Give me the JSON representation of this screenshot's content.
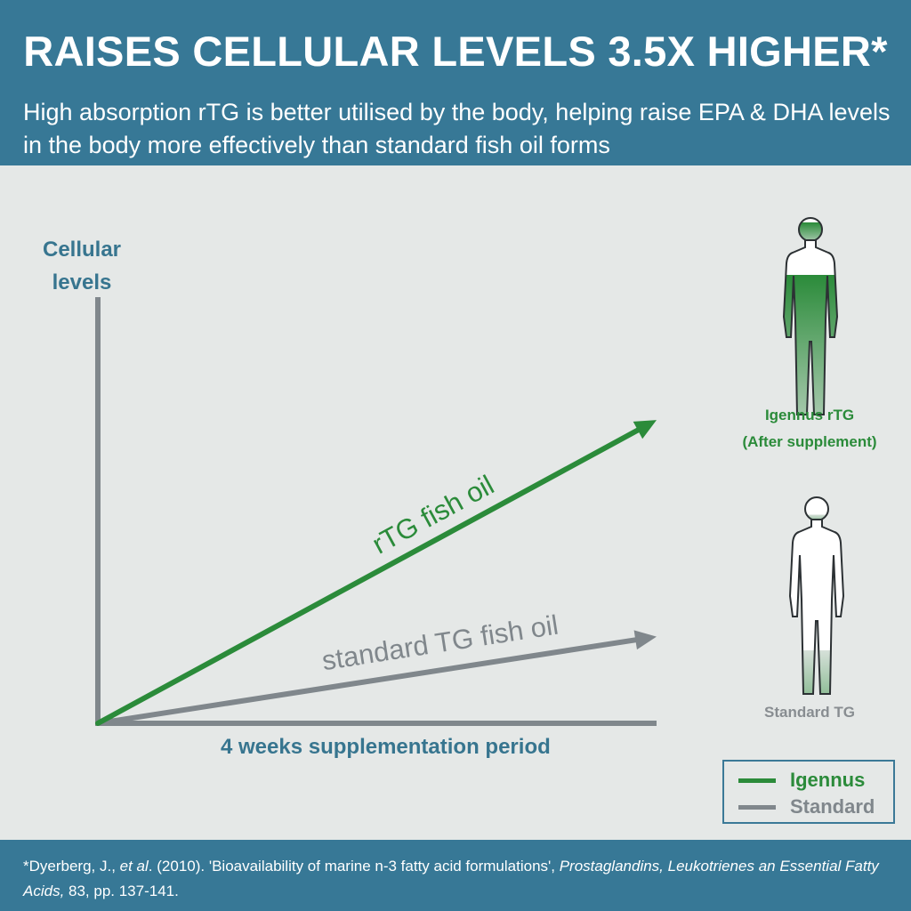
{
  "header": {
    "title": "RAISES CELLULAR LEVELS 3.5X HIGHER*",
    "subtitle": "High absorption rTG  is better utilised by the body, helping raise EPA & DHA levels in the body more effectively than standard fish oil forms"
  },
  "chart_data": {
    "type": "line",
    "ylabel": "Cellular levels",
    "xlabel": "4 weeks supplementation period",
    "x": [
      0,
      4
    ],
    "xlim": [
      0,
      4
    ],
    "ylim": [
      0,
      5
    ],
    "grid": false,
    "legend_position": "bottom-right",
    "series": [
      {
        "name": "rTG fish oil",
        "values": [
          0,
          3.5
        ],
        "color": "#2b8b3a"
      },
      {
        "name": "standard TG fish oil",
        "values": [
          0,
          1.0
        ],
        "color": "#80878c"
      }
    ]
  },
  "figures": {
    "rtg": {
      "caption_line1": "Igennus rTG",
      "caption_line2": "(After supplement)",
      "fill_level": 0.8
    },
    "standard": {
      "caption": "Standard TG",
      "fill_level": 0.25
    }
  },
  "legend": {
    "items": [
      {
        "label": "Igennus",
        "color": "#2b8b3a"
      },
      {
        "label": "Standard",
        "color": "#80878c"
      }
    ]
  },
  "footer": {
    "citation_prefix": "*Dyerberg, J., ",
    "citation_etal": "et al",
    "citation_mid": ". (2010). 'Bioavailability of marine n-3 fatty acid formulations', ",
    "citation_journal": "Prostaglandins, Leukotrienes an Essential Fatty Acids,",
    "citation_tail": " 83, pp. 137-141."
  },
  "colors": {
    "brand_blue": "#377896",
    "green": "#2b8b3a",
    "gray": "#80878c",
    "background": "#e5e8e7"
  }
}
